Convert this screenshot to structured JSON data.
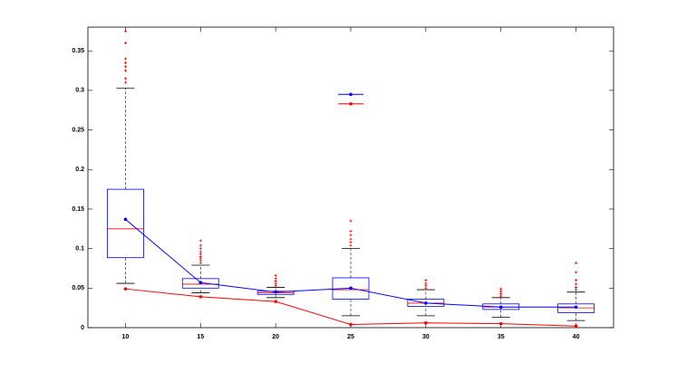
{
  "chart_data": {
    "type": "box",
    "x": [
      10,
      15,
      20,
      25,
      30,
      35,
      40
    ],
    "xlim": [
      7.5,
      42.5
    ],
    "xticks": [
      10,
      15,
      20,
      25,
      30,
      35,
      40
    ],
    "ylim": [
      0,
      0.38
    ],
    "yticks": [
      0,
      0.05,
      0.1,
      0.15,
      0.2,
      0.25,
      0.3,
      0.35
    ],
    "box_color": "#0000ff",
    "median_color": "#ff0000",
    "whisker_color": "#000000",
    "outlier_color": "#ff0000",
    "boxes": [
      {
        "low": 0.056,
        "q1": 0.0885,
        "median": 0.125,
        "q3": 0.175,
        "high": 0.303,
        "outliers": [
          0.31,
          0.315,
          0.325,
          0.33,
          0.335,
          0.34,
          0.36,
          0.375
        ]
      },
      {
        "low": 0.044,
        "q1": 0.05,
        "median": 0.055,
        "q3": 0.062,
        "high": 0.079,
        "outliers": [
          0.082,
          0.085,
          0.088,
          0.09,
          0.093,
          0.096,
          0.1,
          0.104,
          0.11
        ]
      },
      {
        "low": 0.038,
        "q1": 0.042,
        "median": 0.044,
        "q3": 0.046,
        "high": 0.051,
        "outliers": [
          0.053,
          0.056,
          0.059,
          0.062,
          0.066
        ]
      },
      {
        "low": 0.015,
        "q1": 0.036,
        "median": 0.048,
        "q3": 0.063,
        "high": 0.1,
        "outliers": [
          0.104,
          0.108,
          0.112,
          0.117,
          0.122,
          0.135
        ]
      },
      {
        "low": 0.015,
        "q1": 0.027,
        "median": 0.031,
        "q3": 0.036,
        "high": 0.048,
        "outliers": [
          0.05,
          0.053,
          0.056,
          0.06
        ]
      },
      {
        "low": 0.013,
        "q1": 0.023,
        "median": 0.026,
        "q3": 0.03,
        "high": 0.038,
        "outliers": [
          0.04,
          0.043,
          0.046,
          0.049
        ]
      },
      {
        "low": 0.009,
        "q1": 0.019,
        "median": 0.025,
        "q3": 0.03,
        "high": 0.045,
        "outliers": [
          0.048,
          0.051,
          0.055,
          0.06,
          0.07,
          0.082
        ]
      }
    ],
    "series": [
      {
        "color": "#0000ff",
        "values": [
          0.137,
          0.057,
          0.045,
          0.05,
          0.031,
          0.026,
          0.026
        ]
      },
      {
        "color": "#ff0000",
        "values": [
          0.049,
          0.039,
          0.033,
          0.004,
          0.006,
          0.005,
          0.002
        ]
      }
    ],
    "markers": [
      {
        "color": "#0000ff",
        "x": 25,
        "value": 0.295
      },
      {
        "color": "#ff0000",
        "x": 25,
        "value": 0.283
      }
    ]
  }
}
